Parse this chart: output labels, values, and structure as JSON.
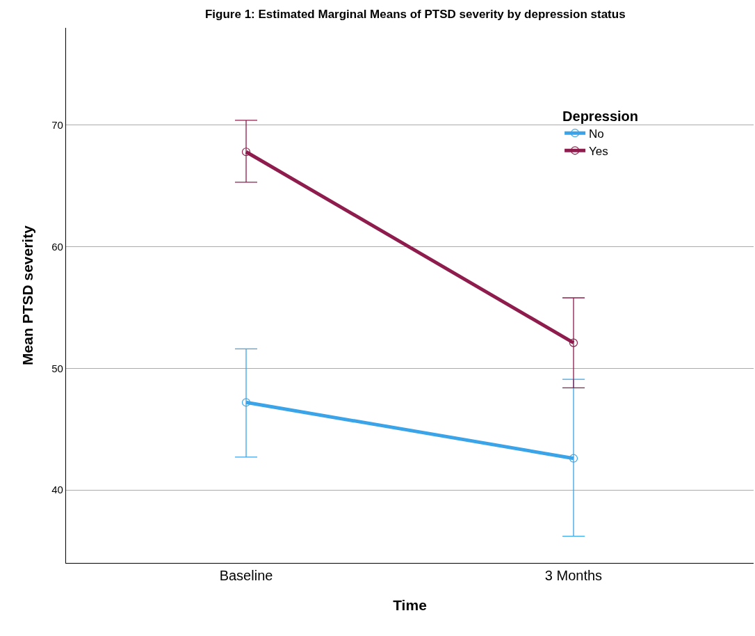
{
  "chart_data": {
    "type": "line",
    "title": "Figure 1: Estimated Marginal Means of PTSD severity by depression status",
    "xlabel": "Time",
    "ylabel": "Mean PTSD severity",
    "legend_title": "Depression",
    "categories": [
      "Baseline",
      "3 Months"
    ],
    "series": [
      {
        "name": "No",
        "color": "#3ba4e8",
        "values": [
          47.2,
          42.6
        ],
        "errors": [
          [
            42.7,
            51.6
          ],
          [
            36.2,
            49.1
          ]
        ]
      },
      {
        "name": "Yes",
        "color": "#8e1c4c",
        "values": [
          67.8,
          52.1
        ],
        "errors": [
          [
            65.3,
            70.4
          ],
          [
            48.4,
            55.8
          ]
        ]
      }
    ],
    "ylim": [
      34,
      78
    ],
    "yticks": [
      40,
      50,
      60,
      70
    ],
    "grid": "y",
    "legend": "top right",
    "marker": "circle",
    "line_style": "solid"
  }
}
